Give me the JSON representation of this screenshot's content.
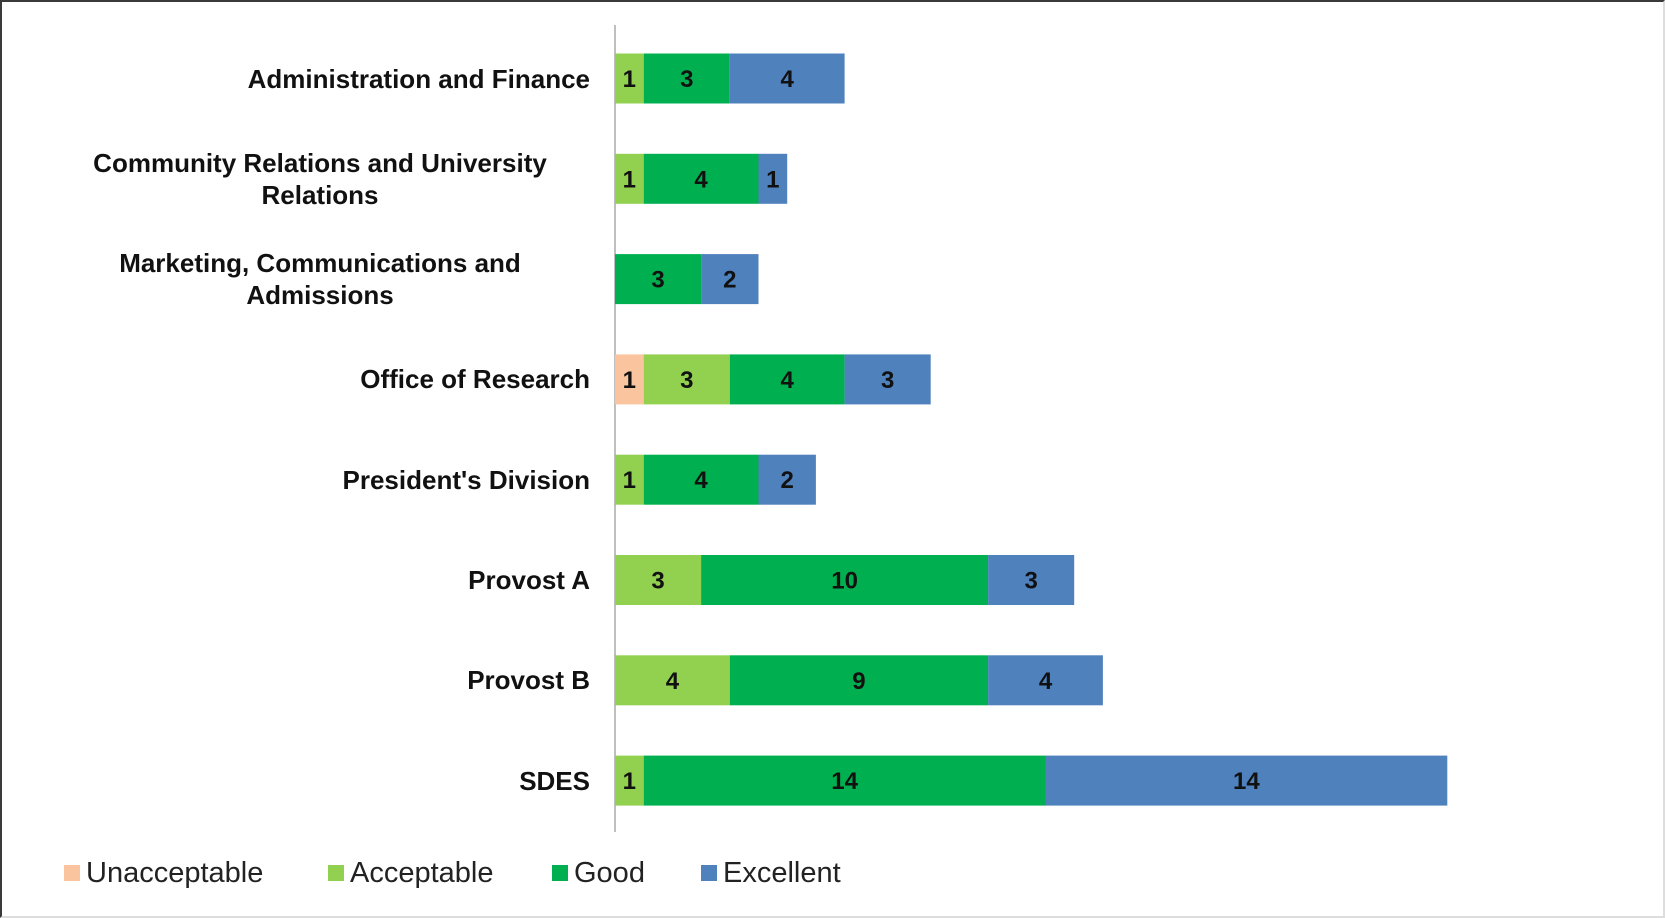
{
  "chart_data": {
    "type": "bar",
    "orientation": "horizontal",
    "stacked": true,
    "categories": [
      "Administration and Finance",
      "Community Relations and University Relations",
      "Marketing, Communications and Admissions",
      "Office of Research",
      "President's Division",
      "Provost A",
      "Provost B",
      "SDES"
    ],
    "series": [
      {
        "name": "Unacceptable",
        "color": "#f9c49e",
        "values": [
          null,
          null,
          null,
          1,
          null,
          null,
          null,
          null
        ]
      },
      {
        "name": "Acceptable",
        "color": "#92d050",
        "values": [
          1,
          1,
          null,
          3,
          1,
          3,
          4,
          1
        ]
      },
      {
        "name": "Good",
        "color": "#00b050",
        "values": [
          3,
          4,
          3,
          4,
          4,
          10,
          9,
          14
        ]
      },
      {
        "name": "Excellent",
        "color": "#4f81bd",
        "values": [
          4,
          1,
          2,
          3,
          2,
          3,
          4,
          14
        ]
      }
    ],
    "legend": "bottom"
  }
}
